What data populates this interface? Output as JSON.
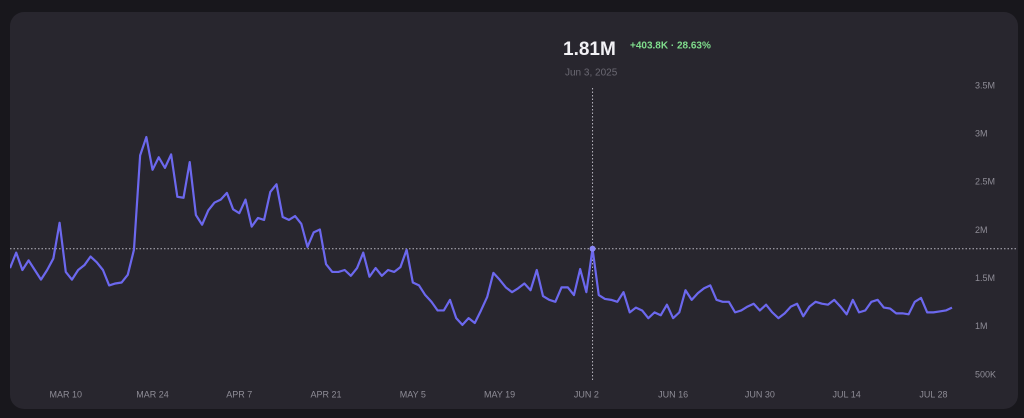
{
  "chart_data": {
    "type": "line",
    "color": "#6c68ee",
    "categories": [
      null,
      null,
      null,
      null,
      null,
      null,
      null,
      null,
      null,
      "MAR 10",
      null,
      null,
      null,
      null,
      null,
      null,
      null,
      null,
      null,
      null,
      null,
      null,
      null,
      "MAR 24",
      null,
      null,
      null,
      null,
      null,
      null,
      null,
      null,
      null,
      null,
      null,
      null,
      null,
      "APR 7",
      null,
      null,
      null,
      null,
      null,
      null,
      null,
      null,
      null,
      null,
      null,
      null,
      null,
      "APR 21",
      null,
      null,
      null,
      null,
      null,
      null,
      null,
      null,
      null,
      null,
      null,
      null,
      null,
      "MAY 5",
      null,
      null,
      null,
      null,
      null,
      null,
      null,
      null,
      null,
      null,
      null,
      null,
      null,
      "MAY 19",
      null,
      null,
      null,
      null,
      null,
      null,
      null,
      null,
      null,
      null,
      null,
      null,
      null,
      "JUN 2",
      null,
      null,
      null,
      null,
      null,
      null,
      null,
      null,
      null,
      null,
      null,
      null,
      null,
      "JUN 16",
      null,
      null,
      null,
      null,
      null,
      null,
      null,
      null,
      null,
      null,
      null,
      null,
      null,
      "JUN 30",
      null,
      null,
      null,
      null,
      null,
      null,
      null,
      null,
      null,
      null,
      null,
      null,
      null,
      "JUL 14",
      null,
      null,
      null,
      null,
      null,
      null,
      null,
      null,
      null,
      null,
      null,
      null,
      null,
      "JUL 28",
      null,
      null,
      null
    ],
    "values": [
      1610000,
      1770000,
      1590000,
      1690000,
      1590000,
      1490000,
      1590000,
      1710000,
      2080000,
      1570000,
      1490000,
      1590000,
      1640000,
      1730000,
      1670000,
      1590000,
      1430000,
      1450000,
      1460000,
      1540000,
      1800000,
      2780000,
      2970000,
      2630000,
      2760000,
      2650000,
      2790000,
      2350000,
      2340000,
      2710000,
      2160000,
      2060000,
      2210000,
      2290000,
      2320000,
      2390000,
      2220000,
      2180000,
      2320000,
      2040000,
      2130000,
      2110000,
      2400000,
      2480000,
      2140000,
      2110000,
      2150000,
      2070000,
      1830000,
      1980000,
      2010000,
      1650000,
      1570000,
      1570000,
      1590000,
      1530000,
      1610000,
      1770000,
      1520000,
      1610000,
      1530000,
      1590000,
      1570000,
      1620000,
      1800000,
      1460000,
      1430000,
      1330000,
      1260000,
      1170000,
      1170000,
      1280000,
      1090000,
      1020000,
      1090000,
      1040000,
      1170000,
      1310000,
      1560000,
      1490000,
      1410000,
      1360000,
      1400000,
      1450000,
      1380000,
      1590000,
      1320000,
      1280000,
      1260000,
      1410000,
      1410000,
      1330000,
      1600000,
      1360000,
      1810000,
      1330000,
      1290000,
      1280000,
      1260000,
      1360000,
      1150000,
      1200000,
      1170000,
      1090000,
      1150000,
      1120000,
      1230000,
      1090000,
      1150000,
      1380000,
      1280000,
      1350000,
      1400000,
      1430000,
      1280000,
      1260000,
      1260000,
      1150000,
      1170000,
      1210000,
      1240000,
      1170000,
      1230000,
      1150000,
      1090000,
      1140000,
      1210000,
      1240000,
      1110000,
      1210000,
      1260000,
      1240000,
      1230000,
      1280000,
      1210000,
      1130000,
      1280000,
      1150000,
      1170000,
      1260000,
      1280000,
      1200000,
      1190000,
      1140000,
      1140000,
      1130000,
      1260000,
      1300000,
      1150000,
      1150000,
      1160000,
      1170000,
      1200000
    ],
    "ylim": [
      500000,
      3500000
    ],
    "yticks": [
      {
        "value": 500000,
        "label": "500K"
      },
      {
        "value": 1000000,
        "label": "1M"
      },
      {
        "value": 1500000,
        "label": "1.5M"
      },
      {
        "value": 2000000,
        "label": "2M"
      },
      {
        "value": 2500000,
        "label": "2.5M"
      },
      {
        "value": 3000000,
        "label": "3M"
      },
      {
        "value": 3500000,
        "label": "3.5M"
      }
    ],
    "tooltip": {
      "value": "1.81M",
      "change": "+403.8K · 28.63%",
      "date": "Jun 3, 2025"
    }
  }
}
